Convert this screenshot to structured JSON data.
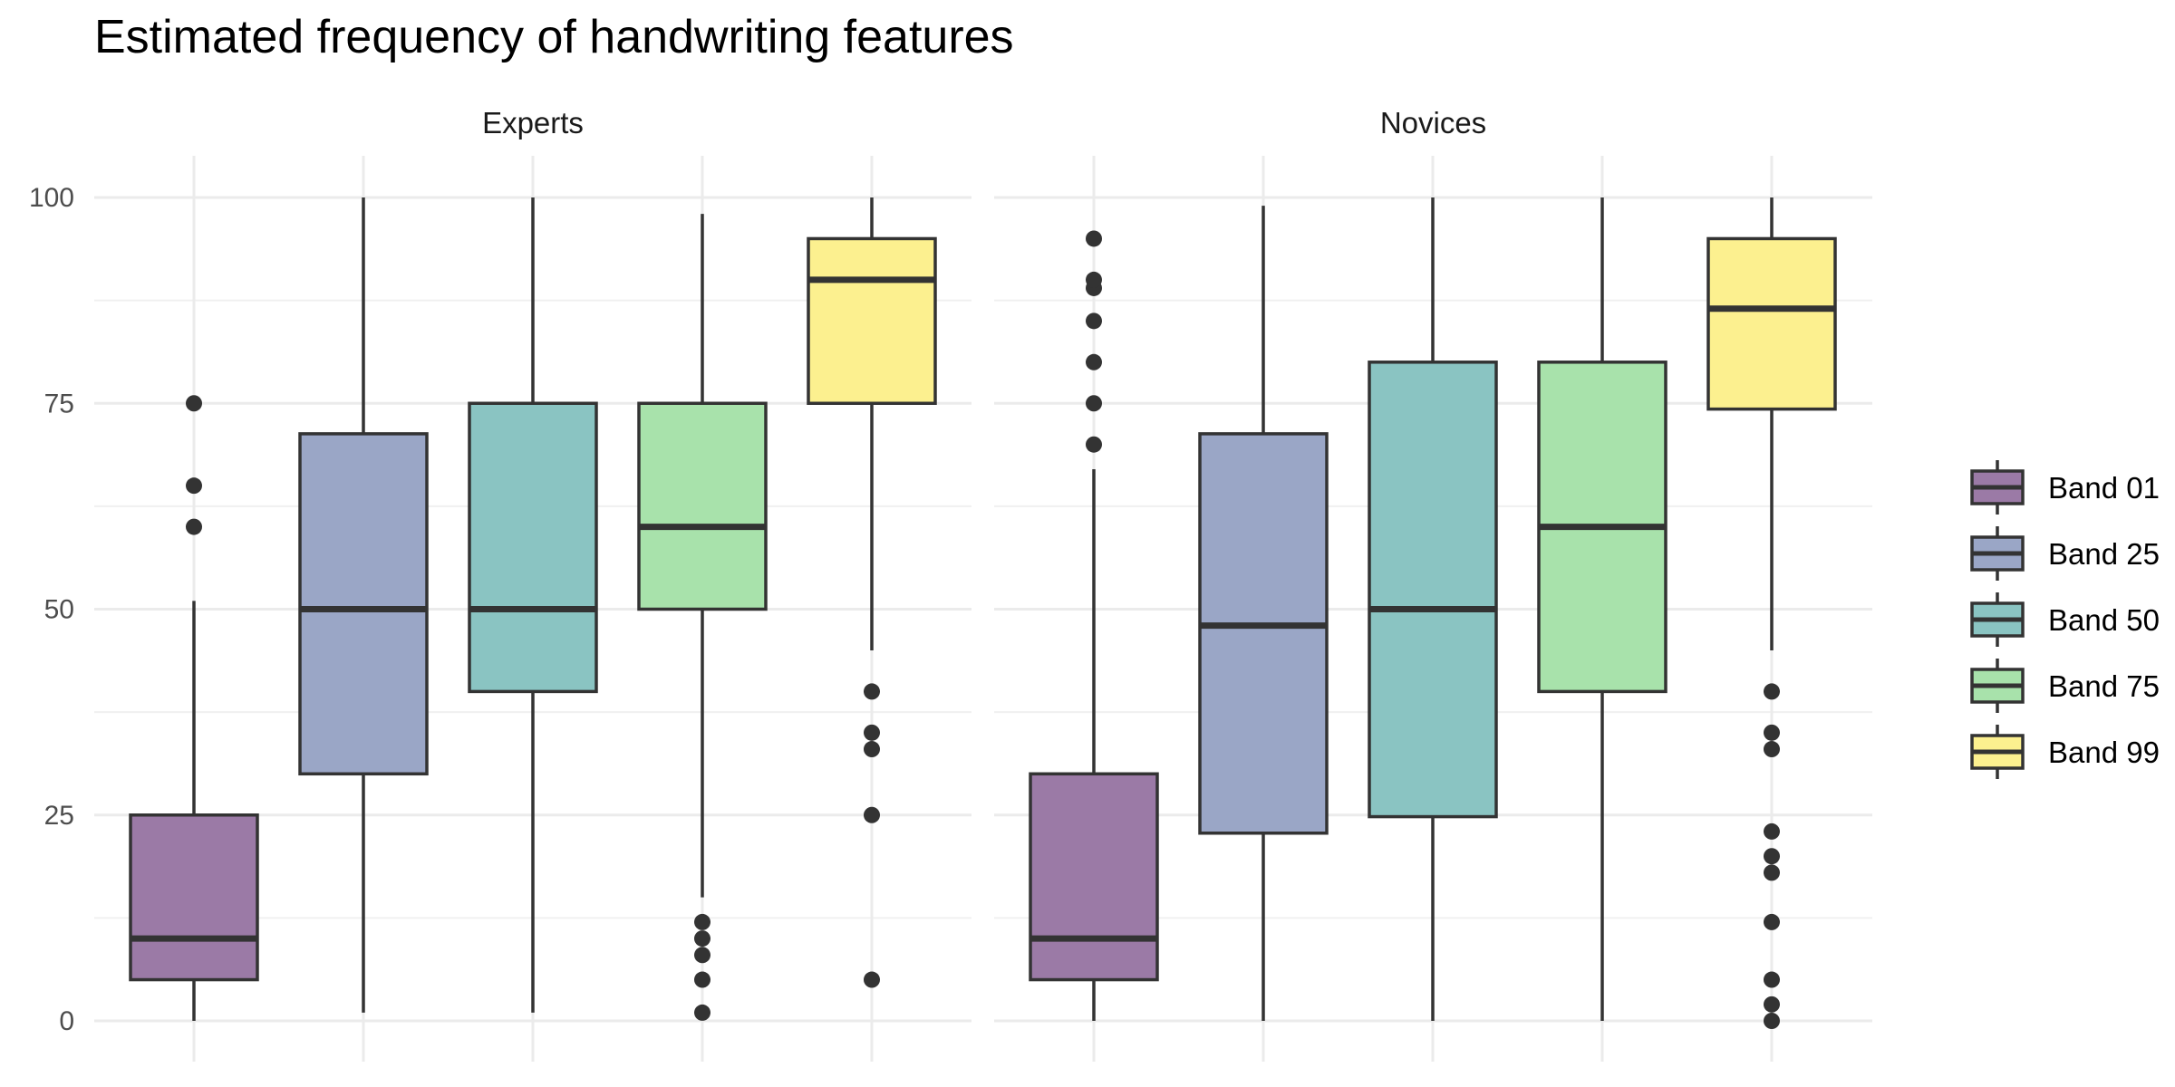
{
  "chart_data": {
    "type": "boxplot",
    "title": "Estimated frequency of handwriting features",
    "xlabel": "",
    "ylabel": "",
    "ylim": [
      0,
      100
    ],
    "y_ticks": [
      0,
      25,
      50,
      75,
      100
    ],
    "grid": true,
    "legend_position": "right",
    "categories": [
      "Band 01",
      "Band 25",
      "Band 50",
      "Band 75",
      "Band 99"
    ],
    "colors": [
      "#9b7aa6",
      "#9aa6c6",
      "#8ac4c2",
      "#a8e2ab",
      "#fcf08f"
    ],
    "panels": [
      {
        "name": "Experts",
        "boxes": [
          {
            "category": "Band 01",
            "whisker_low": 0,
            "q1": 5,
            "median": 10,
            "q3": 25,
            "whisker_high": 51,
            "outliers": [
              60,
              65,
              75
            ]
          },
          {
            "category": "Band 25",
            "whisker_low": 1,
            "q1": 30,
            "median": 50,
            "q3": 71.3,
            "whisker_high": 100,
            "outliers": []
          },
          {
            "category": "Band 50",
            "whisker_low": 1,
            "q1": 40,
            "median": 50,
            "q3": 75,
            "whisker_high": 100,
            "outliers": []
          },
          {
            "category": "Band 75",
            "whisker_low": 15,
            "q1": 50,
            "median": 60,
            "q3": 75,
            "whisker_high": 98,
            "outliers": [
              1,
              5,
              8,
              10,
              12
            ]
          },
          {
            "category": "Band 99",
            "whisker_low": 45,
            "q1": 75,
            "median": 90,
            "q3": 95,
            "whisker_high": 100,
            "outliers": [
              5,
              25,
              33,
              35,
              40
            ]
          }
        ]
      },
      {
        "name": "Novices",
        "boxes": [
          {
            "category": "Band 01",
            "whisker_low": 0,
            "q1": 5,
            "median": 10,
            "q3": 30,
            "whisker_high": 67,
            "outliers": [
              70,
              75,
              80,
              85,
              89,
              90,
              95
            ]
          },
          {
            "category": "Band 25",
            "whisker_low": 0,
            "q1": 22.8,
            "median": 48,
            "q3": 71.3,
            "whisker_high": 99,
            "outliers": []
          },
          {
            "category": "Band 50",
            "whisker_low": 0,
            "q1": 24.8,
            "median": 50,
            "q3": 80,
            "whisker_high": 100,
            "outliers": []
          },
          {
            "category": "Band 75",
            "whisker_low": 0,
            "q1": 40,
            "median": 60,
            "q3": 80,
            "whisker_high": 100,
            "outliers": []
          },
          {
            "category": "Band 99",
            "whisker_low": 45,
            "q1": 74.3,
            "median": 86.5,
            "q3": 95,
            "whisker_high": 100,
            "outliers": [
              0,
              2,
              5,
              12,
              18,
              20,
              23,
              33,
              35,
              40
            ]
          }
        ]
      }
    ]
  }
}
